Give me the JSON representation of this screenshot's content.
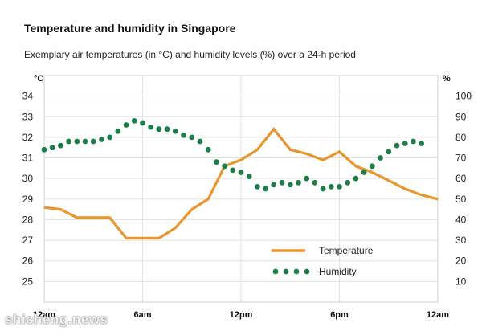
{
  "header": {
    "title": "Temperature and humidity in Singapore",
    "subtitle": "Exemplary air temperatures (in °C) and humidity levels (%) over a 24-h period"
  },
  "watermark": "shicheng.news",
  "chart_data": {
    "type": "line",
    "title": "Temperature and humidity in Singapore",
    "subtitle": "Exemplary air temperatures (in °C) and humidity levels (%) over a 24-h period",
    "x_ticks": [
      {
        "x": 0,
        "label": "12am"
      },
      {
        "x": 6,
        "label": "6am"
      },
      {
        "x": 12,
        "label": "12pm"
      },
      {
        "x": 18,
        "label": "6pm"
      },
      {
        "x": 24,
        "label": "12am"
      }
    ],
    "xlim": [
      0,
      24
    ],
    "y_left": {
      "label": "°C",
      "ylim": [
        24,
        35
      ],
      "ticks": [
        25,
        26,
        27,
        28,
        29,
        30,
        31,
        32,
        33,
        34
      ]
    },
    "y_right": {
      "label": "%",
      "ylim": [
        0,
        110
      ],
      "ticks": [
        10,
        20,
        30,
        40,
        50,
        60,
        70,
        80,
        90,
        100
      ]
    },
    "grid": true,
    "legend": "bottom-right",
    "series": [
      {
        "name": "Temperature",
        "axis": "left",
        "style": "solid",
        "color": "#E8952B",
        "points": [
          [
            0,
            28.6
          ],
          [
            1,
            28.5
          ],
          [
            2,
            28.1
          ],
          [
            3,
            28.1
          ],
          [
            4,
            28.1
          ],
          [
            5,
            27.1
          ],
          [
            6,
            27.1
          ],
          [
            7,
            27.1
          ],
          [
            8,
            27.6
          ],
          [
            9,
            28.5
          ],
          [
            10,
            29.0
          ],
          [
            11,
            30.6
          ],
          [
            12,
            30.9
          ],
          [
            13,
            31.4
          ],
          [
            14,
            32.4
          ],
          [
            15,
            31.4
          ],
          [
            16,
            31.2
          ],
          [
            17,
            30.9
          ],
          [
            18,
            31.3
          ],
          [
            19,
            30.6
          ],
          [
            20,
            30.3
          ],
          [
            21,
            29.9
          ],
          [
            22,
            29.5
          ],
          [
            23,
            29.2
          ],
          [
            24,
            29.0
          ]
        ]
      },
      {
        "name": "Humidity",
        "axis": "right",
        "style": "dotted",
        "color": "#1E7E4A",
        "points": [
          [
            0,
            74
          ],
          [
            0.5,
            75
          ],
          [
            1,
            76
          ],
          [
            1.5,
            78
          ],
          [
            2,
            78
          ],
          [
            2.5,
            78
          ],
          [
            3,
            78
          ],
          [
            3.5,
            79
          ],
          [
            4,
            80
          ],
          [
            4.5,
            83
          ],
          [
            5,
            86
          ],
          [
            5.5,
            88
          ],
          [
            6,
            87
          ],
          [
            6.5,
            85
          ],
          [
            7,
            84
          ],
          [
            7.5,
            84
          ],
          [
            8,
            83
          ],
          [
            8.5,
            81
          ],
          [
            9,
            80
          ],
          [
            9.5,
            78
          ],
          [
            10,
            74
          ],
          [
            10.5,
            68
          ],
          [
            11,
            66
          ],
          [
            11.5,
            64
          ],
          [
            12,
            63
          ],
          [
            12.5,
            61
          ],
          [
            13,
            56
          ],
          [
            13.5,
            55
          ],
          [
            14,
            57
          ],
          [
            14.5,
            58
          ],
          [
            15,
            57
          ],
          [
            15.5,
            58
          ],
          [
            16,
            60
          ],
          [
            16.5,
            58
          ],
          [
            17,
            55
          ],
          [
            17.5,
            56
          ],
          [
            18,
            56
          ],
          [
            18.5,
            58
          ],
          [
            19,
            60
          ],
          [
            19.5,
            63
          ],
          [
            20,
            66
          ],
          [
            20.5,
            70
          ],
          [
            21,
            73
          ],
          [
            21.5,
            76
          ],
          [
            22,
            77
          ],
          [
            22.5,
            78
          ],
          [
            23,
            77
          ]
        ]
      }
    ]
  }
}
